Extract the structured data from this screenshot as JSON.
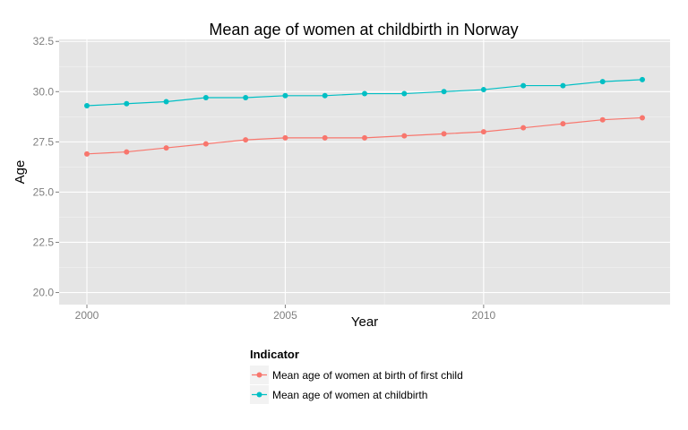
{
  "chart_data": {
    "type": "line",
    "title": "Mean age of women at childbirth in Norway",
    "xlabel": "Year",
    "ylabel": "Age",
    "x": [
      2000,
      2001,
      2002,
      2003,
      2004,
      2005,
      2006,
      2007,
      2008,
      2009,
      2010,
      2011,
      2012,
      2013,
      2014
    ],
    "xlim": [
      1999.3,
      2014.7
    ],
    "ylim": [
      19.4,
      32.6
    ],
    "x_ticks": [
      2000,
      2005,
      2010
    ],
    "x_tick_labels": [
      "2000",
      "2005",
      "2010"
    ],
    "y_ticks": [
      20.0,
      22.5,
      25.0,
      27.5,
      30.0,
      32.5
    ],
    "y_tick_labels": [
      "20.0",
      "22.5",
      "25.0",
      "27.5",
      "30.0",
      "32.5"
    ],
    "grid": true,
    "legend_position": "bottom",
    "legend_title": "Indicator",
    "series": [
      {
        "name": "Mean age of women at birth of first child",
        "color": "#f8766d",
        "values": [
          26.9,
          27.0,
          27.2,
          27.4,
          27.6,
          27.7,
          27.7,
          27.7,
          27.8,
          27.9,
          28.0,
          28.2,
          28.4,
          28.6,
          28.7
        ]
      },
      {
        "name": "Mean age of women at childbirth",
        "color": "#00bfc4",
        "values": [
          29.3,
          29.4,
          29.5,
          29.7,
          29.7,
          29.8,
          29.8,
          29.9,
          29.9,
          30.0,
          30.1,
          30.3,
          30.3,
          30.5,
          30.6
        ]
      }
    ]
  },
  "colors": {
    "panel_background": "#e5e5e5",
    "grid_major": "#ffffff",
    "grid_minor": "#f2f2f2",
    "tick_text": "#7f7f7f",
    "legend_key_background": "#f2f2f2"
  }
}
